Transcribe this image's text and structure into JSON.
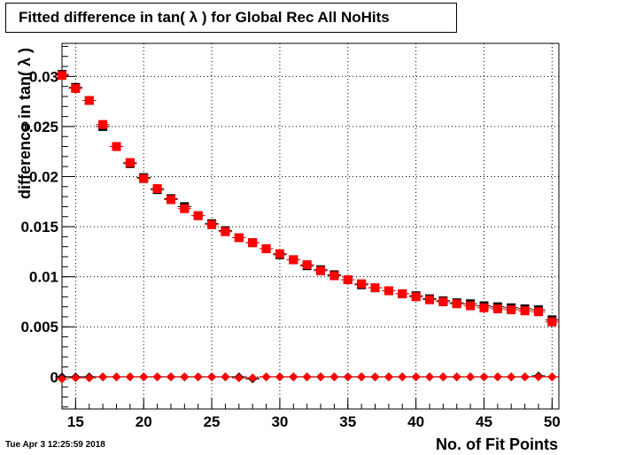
{
  "chart_data": {
    "type": "scatter",
    "title": "Fitted difference in tan( λ ) for Global Rec All NoHits",
    "xlabel": "No. of Fit Points",
    "ylabel": "difference in tan( λ )",
    "timestamp": "Tue Apr  3 12:25:59 2018",
    "xlim": [
      14,
      50.5
    ],
    "ylim": [
      -0.0032,
      0.0333
    ],
    "xticks": [
      15,
      20,
      25,
      30,
      35,
      40,
      45,
      50
    ],
    "xtick_labels": [
      "15",
      "20",
      "25",
      "30",
      "35",
      "40",
      "45",
      "50"
    ],
    "yticks": [
      0,
      0.005,
      0.01,
      0.015,
      0.02,
      0.025,
      0.03
    ],
    "ytick_labels": [
      "0",
      "0.005",
      "0.01",
      "0.015",
      "0.02",
      "0.025",
      "0.03"
    ],
    "grid": true,
    "x": [
      14,
      15,
      16,
      17,
      18,
      19,
      20,
      21,
      22,
      23,
      24,
      25,
      26,
      27,
      28,
      29,
      30,
      31,
      32,
      33,
      34,
      35,
      36,
      37,
      38,
      39,
      40,
      41,
      42,
      43,
      44,
      45,
      46,
      47,
      48,
      49,
      50
    ],
    "series": [
      {
        "color": "#000000",
        "marker": "square",
        "values": [
          0.0302,
          0.0289,
          0.0276,
          0.025,
          0.023,
          0.0213,
          0.0199,
          0.0187,
          0.0178,
          0.017,
          0.0161,
          0.0153,
          0.0146,
          0.0139,
          0.0134,
          0.0128,
          0.0122,
          0.0117,
          0.0111,
          0.0107,
          0.0102,
          0.0097,
          0.0092,
          0.0089,
          0.0086,
          0.0083,
          0.0081,
          0.0078,
          0.0076,
          0.0074,
          0.0073,
          0.0071,
          0.007,
          0.0069,
          0.0068,
          0.0067,
          0.0057
        ]
      },
      {
        "color": "#ff0000",
        "marker": "square",
        "values": [
          0.0301,
          0.0288,
          0.0276,
          0.0252,
          0.023,
          0.0214,
          0.0198,
          0.0188,
          0.0177,
          0.0168,
          0.0161,
          0.0152,
          0.0145,
          0.0139,
          0.0134,
          0.0128,
          0.0123,
          0.0117,
          0.0112,
          0.0106,
          0.0101,
          0.0097,
          0.0093,
          0.0089,
          0.0086,
          0.0083,
          0.008,
          0.0077,
          0.0075,
          0.0073,
          0.0071,
          0.0069,
          0.0068,
          0.0067,
          0.0066,
          0.0065,
          0.0055
        ]
      },
      {
        "color": "#000000",
        "marker": "diamond",
        "values": [
          0.0,
          0.0,
          0.0,
          0.0,
          0.0,
          0.0,
          0.0,
          0.0,
          0.0,
          0.0,
          0.0,
          0.0,
          0.0,
          0.0,
          -0.0002,
          0.0,
          0.0,
          0.0,
          0.0,
          0.0,
          0.0,
          0.0,
          0.0,
          0.0,
          0.0,
          0.0,
          0.0,
          0.0,
          0.0,
          0.0,
          0.0,
          0.0,
          0.0,
          0.0,
          0.0,
          0.0001,
          0.0
        ]
      },
      {
        "color": "#ff0000",
        "marker": "diamond",
        "values": [
          -0.0002,
          -0.0001,
          -0.0001,
          0.0,
          0.0,
          0.0,
          0.0,
          0.0,
          0.0,
          0.0,
          0.0,
          0.0,
          0.0,
          -0.0001,
          -0.0001,
          0.0,
          0.0,
          0.0,
          0.0,
          0.0,
          0.0,
          0.0,
          0.0,
          0.0,
          0.0,
          0.0,
          0.0,
          0.0,
          0.0,
          0.0,
          0.0,
          0.0,
          0.0,
          0.0,
          0.0,
          0.0,
          0.0
        ]
      }
    ]
  }
}
